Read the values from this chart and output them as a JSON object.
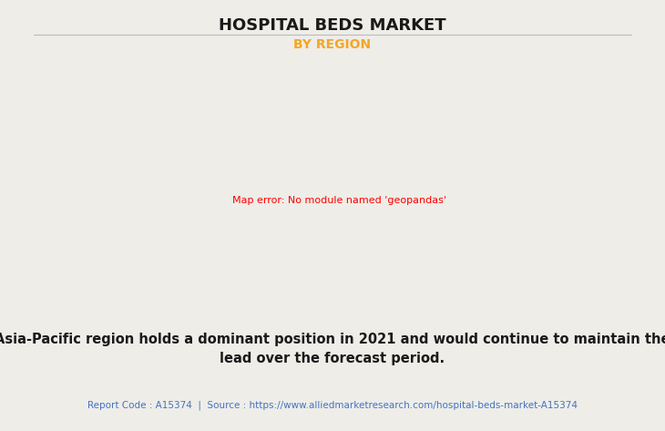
{
  "title": "HOSPITAL BEDS MARKET",
  "subtitle": "BY REGION",
  "subtitle_color": "#F5A623",
  "description": "Asia-Pacific region holds a dominant position in 2021 and would continue to maintain the\nlead over the forecast period.",
  "footer": "Report Code : A15374  |  Source : https://www.alliedmarketresearch.com/hospital-beds-market-A15374",
  "footer_color": "#4472C4",
  "background_color": "#EEEDE8",
  "map_default_color": "#8FBC8B",
  "map_highlight_color": "#E8E8E8",
  "map_edge_color": "#6BAED6",
  "map_shadow_color": "#888888",
  "title_fontsize": 13,
  "subtitle_fontsize": 10,
  "desc_fontsize": 10.5,
  "footer_fontsize": 7.5
}
